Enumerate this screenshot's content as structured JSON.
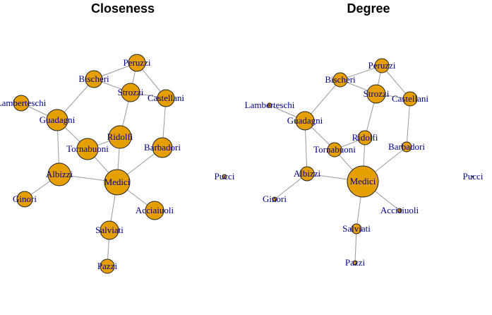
{
  "colors": {
    "node_fill": "#E69F00",
    "label": "#00008B",
    "edge": "#9a9a9a",
    "title": "#000000"
  },
  "panels": [
    {
      "id": "closeness",
      "title": "Closeness",
      "sizes": {
        "Peruzzi": 12,
        "Bischeri": 12,
        "Strozzi": 13,
        "Castellani": 12,
        "Lamberteschi": 11,
        "Guadagni": 15,
        "Ridolfi": 16,
        "Barbadori": 14,
        "Tornabuoni": 15,
        "Albizzi": 16,
        "Medici": 18,
        "Ginori": 11,
        "Acciaiuoli": 13,
        "Salviati": 13,
        "Pazzi": 10,
        "Pucci": 3
      }
    },
    {
      "id": "degree",
      "title": "Degree",
      "sizes": {
        "Peruzzi": 10,
        "Bischeri": 10,
        "Strozzi": 13,
        "Castellani": 10,
        "Lamberteschi": 3,
        "Guadagni": 13,
        "Ridolfi": 10,
        "Barbadori": 7,
        "Tornabuoni": 10,
        "Albizzi": 10,
        "Medici": 22,
        "Ginori": 3,
        "Acciaiuoli": 3,
        "Salviati": 7,
        "Pazzi": 3,
        "Pucci": 1
      }
    }
  ],
  "nodes": [
    {
      "id": "Peruzzi",
      "label": "Peruzzi"
    },
    {
      "id": "Bischeri",
      "label": "Bischeri"
    },
    {
      "id": "Strozzi",
      "label": "Strozzi"
    },
    {
      "id": "Castellani",
      "label": "Castellani"
    },
    {
      "id": "Lamberteschi",
      "label": "Lamberteschi"
    },
    {
      "id": "Guadagni",
      "label": "Guadagni"
    },
    {
      "id": "Ridolfi",
      "label": "Ridolfi"
    },
    {
      "id": "Barbadori",
      "label": "Barbadori"
    },
    {
      "id": "Tornabuoni",
      "label": "Tornabuoni"
    },
    {
      "id": "Albizzi",
      "label": "Albizzi"
    },
    {
      "id": "Medici",
      "label": "Medici"
    },
    {
      "id": "Ginori",
      "label": "Ginori"
    },
    {
      "id": "Acciaiuoli",
      "label": "Acciaiuoli"
    },
    {
      "id": "Salviati",
      "label": "Salviati"
    },
    {
      "id": "Pazzi",
      "label": "Pazzi"
    },
    {
      "id": "Pucci",
      "label": "Pucci"
    }
  ],
  "edges": [
    [
      "Acciaiuoli",
      "Medici"
    ],
    [
      "Albizzi",
      "Ginori"
    ],
    [
      "Albizzi",
      "Guadagni"
    ],
    [
      "Albizzi",
      "Medici"
    ],
    [
      "Barbadori",
      "Castellani"
    ],
    [
      "Barbadori",
      "Medici"
    ],
    [
      "Bischeri",
      "Guadagni"
    ],
    [
      "Bischeri",
      "Peruzzi"
    ],
    [
      "Bischeri",
      "Strozzi"
    ],
    [
      "Castellani",
      "Peruzzi"
    ],
    [
      "Castellani",
      "Strozzi"
    ],
    [
      "Guadagni",
      "Lamberteschi"
    ],
    [
      "Guadagni",
      "Tornabuoni"
    ],
    [
      "Medici",
      "Ridolfi"
    ],
    [
      "Medici",
      "Salviati"
    ],
    [
      "Medici",
      "Tornabuoni"
    ],
    [
      "Pazzi",
      "Salviati"
    ],
    [
      "Peruzzi",
      "Strozzi"
    ],
    [
      "Ridolfi",
      "Strozzi"
    ],
    [
      "Ridolfi",
      "Tornabuoni"
    ]
  ]
}
